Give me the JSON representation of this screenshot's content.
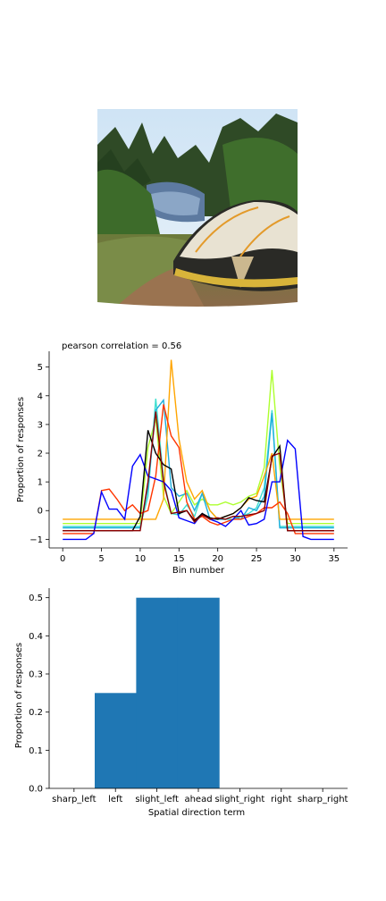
{
  "image": {
    "subject": "camping tent by a forest lake"
  },
  "chart_data": [
    {
      "type": "line",
      "title": "pearson correlation = 0.56",
      "xlabel": "Bin number",
      "ylabel": "Proportion of responses",
      "xlim": [
        -1.75,
        36.75
      ],
      "ylim": [
        -1.3,
        5.55
      ],
      "xticks": [
        0,
        5,
        10,
        15,
        20,
        25,
        30,
        35
      ],
      "yticks": [
        -1,
        0,
        1,
        2,
        3,
        4,
        5
      ],
      "grid": false,
      "legend": "none",
      "series": [
        {
          "color": "#adff2f",
          "values": [
            -0.45,
            -0.45,
            -0.45,
            -0.45,
            -0.45,
            -0.45,
            -0.45,
            -0.45,
            -0.45,
            -0.45,
            -0.45,
            2.2,
            3.2,
            0.5,
            -0.1,
            0.3,
            0.7,
            0.2,
            0.4,
            0.2,
            0.2,
            0.3,
            0.2,
            0.3,
            0.5,
            0.6,
            1.5,
            4.9,
            1.5,
            -0.45,
            -0.45,
            -0.45,
            -0.45,
            -0.45,
            -0.45,
            -0.45
          ]
        },
        {
          "color": "#40e0d0",
          "values": [
            -0.55,
            -0.55,
            -0.55,
            -0.55,
            -0.55,
            -0.55,
            -0.55,
            -0.55,
            -0.55,
            -0.55,
            -0.55,
            0.5,
            3.9,
            1.1,
            -0.1,
            -0.15,
            0.2,
            -0.2,
            0.6,
            0.0,
            -0.3,
            -0.3,
            -0.3,
            -0.2,
            -0.1,
            0.1,
            0.8,
            3.5,
            -0.55,
            -0.55,
            -0.55,
            -0.55,
            -0.55,
            -0.55,
            -0.55,
            -0.55
          ]
        },
        {
          "color": "#1eaedc",
          "values": [
            -0.6,
            -0.6,
            -0.6,
            -0.6,
            -0.6,
            -0.6,
            -0.6,
            -0.6,
            -0.6,
            -0.6,
            -0.6,
            0.8,
            3.5,
            3.85,
            0.8,
            0.5,
            0.6,
            0.0,
            0.6,
            -0.3,
            -0.3,
            -0.3,
            -0.2,
            -0.3,
            0.1,
            0.0,
            0.5,
            3.4,
            -0.6,
            -0.6,
            -0.6,
            -0.6,
            -0.6,
            -0.6,
            -0.6,
            -0.6
          ]
        },
        {
          "color": "#ffa500",
          "values": [
            -0.3,
            -0.3,
            -0.3,
            -0.3,
            -0.3,
            -0.3,
            -0.3,
            -0.3,
            -0.3,
            -0.3,
            -0.3,
            -0.3,
            -0.3,
            0.4,
            5.25,
            2.5,
            1.0,
            0.4,
            0.7,
            0.0,
            -0.3,
            -0.2,
            -0.1,
            0.1,
            0.4,
            0.5,
            1.2,
            2.0,
            -0.3,
            -0.3,
            -0.3,
            -0.3,
            -0.3,
            -0.3,
            -0.3,
            -0.3
          ]
        },
        {
          "color": "#ff3500",
          "values": [
            -0.8,
            -0.8,
            -0.8,
            -0.8,
            -0.8,
            0.7,
            0.75,
            0.4,
            0.0,
            0.2,
            -0.1,
            0.0,
            1.2,
            3.7,
            2.6,
            2.2,
            0.3,
            -0.3,
            -0.2,
            -0.4,
            -0.5,
            -0.4,
            -0.3,
            -0.3,
            -0.2,
            -0.1,
            0.1,
            0.1,
            0.3,
            -0.1,
            -0.8,
            -0.8,
            -0.8,
            -0.8,
            -0.8,
            -0.8
          ]
        },
        {
          "color": "#0000ff",
          "values": [
            -1.0,
            -1.0,
            -1.0,
            -1.0,
            -0.8,
            0.65,
            0.05,
            0.05,
            -0.3,
            1.55,
            1.95,
            1.2,
            1.1,
            1.0,
            0.7,
            -0.25,
            -0.35,
            -0.45,
            -0.1,
            -0.3,
            -0.4,
            -0.55,
            -0.3,
            0.0,
            -0.5,
            -0.45,
            -0.3,
            1.0,
            1.0,
            2.45,
            2.15,
            -0.9,
            -1.0,
            -1.0,
            -1.0,
            -1.0
          ]
        },
        {
          "color": "#000000",
          "values": [
            -0.7,
            -0.7,
            -0.7,
            -0.7,
            -0.7,
            -0.7,
            -0.7,
            -0.7,
            -0.7,
            -0.7,
            -0.2,
            2.8,
            2.0,
            1.6,
            1.45,
            -0.1,
            0.0,
            -0.35,
            -0.1,
            -0.25,
            -0.3,
            -0.2,
            -0.1,
            0.1,
            0.45,
            0.35,
            0.3,
            1.85,
            2.25,
            -0.7,
            -0.7,
            -0.7,
            -0.7,
            -0.7,
            -0.7,
            -0.7
          ]
        },
        {
          "color": "#8b0000",
          "values": [
            -0.7,
            -0.7,
            -0.7,
            -0.7,
            -0.7,
            -0.7,
            -0.7,
            -0.7,
            -0.7,
            -0.7,
            -0.7,
            1.0,
            3.45,
            1.0,
            -0.1,
            -0.05,
            0.0,
            -0.4,
            -0.15,
            -0.3,
            -0.25,
            -0.3,
            -0.2,
            -0.2,
            -0.15,
            -0.1,
            0.0,
            1.9,
            2.0,
            -0.7,
            -0.7,
            -0.7,
            -0.7,
            -0.7,
            -0.7,
            -0.7
          ]
        }
      ]
    },
    {
      "type": "bar",
      "xlabel": "Spatial direction term",
      "ylabel": "Proportion of responses",
      "categories": [
        "sharp_left",
        "left",
        "slight_left",
        "ahead",
        "slight_right",
        "right",
        "sharp_right"
      ],
      "values": [
        0,
        0.25,
        0.5,
        0.5,
        0,
        0,
        0
      ],
      "ylim": [
        0,
        0.525
      ],
      "yticks": [
        0.0,
        0.1,
        0.2,
        0.3,
        0.4,
        0.5
      ],
      "bar_color": "#1f77b4",
      "grid": false
    }
  ]
}
